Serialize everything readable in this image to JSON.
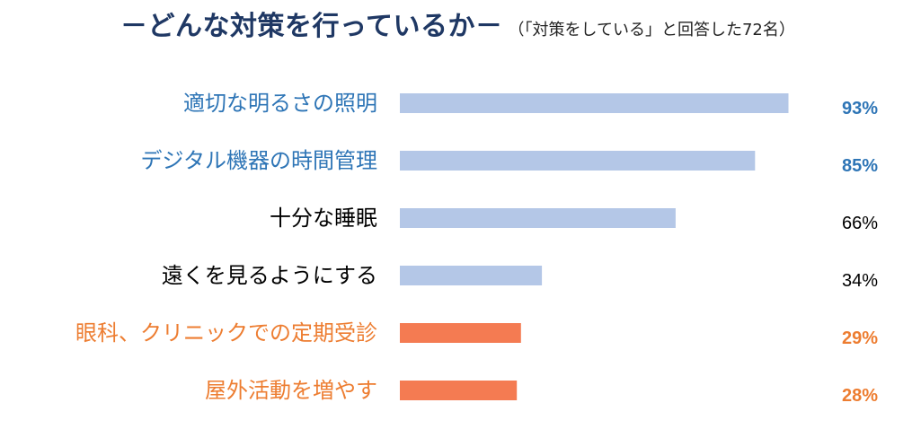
{
  "title": {
    "main": "－どんな対策を行っているか－",
    "note": "（「対策をしている」と回答した72名）"
  },
  "colors": {
    "title": "#1F3864",
    "blue_bar": "#B4C7E7",
    "orange_bar": "#F47B52",
    "blue_text": "#2E75B6",
    "orange_text": "#ED7D31",
    "black_text": "#000000"
  },
  "chart_data": {
    "type": "bar",
    "orientation": "horizontal",
    "unit": "%",
    "xlim": [
      0,
      100
    ],
    "categories": [
      "適切な明るさの照明",
      "デジタル機器の時間管理",
      "十分な睡眠",
      "遠くを見るようにする",
      "眼科、クリニックでの定期受診",
      "屋外活動を増やす"
    ],
    "values": [
      93,
      85,
      66,
      34,
      29,
      28
    ],
    "value_labels": [
      "93%",
      "85%",
      "66%",
      "34%",
      "29%",
      "28%"
    ],
    "label_styles": [
      "blue",
      "blue",
      "black",
      "black",
      "orange",
      "orange"
    ],
    "bar_styles": [
      "blue",
      "blue",
      "blue",
      "blue",
      "orange",
      "orange"
    ],
    "grid": false,
    "legend": "none"
  }
}
